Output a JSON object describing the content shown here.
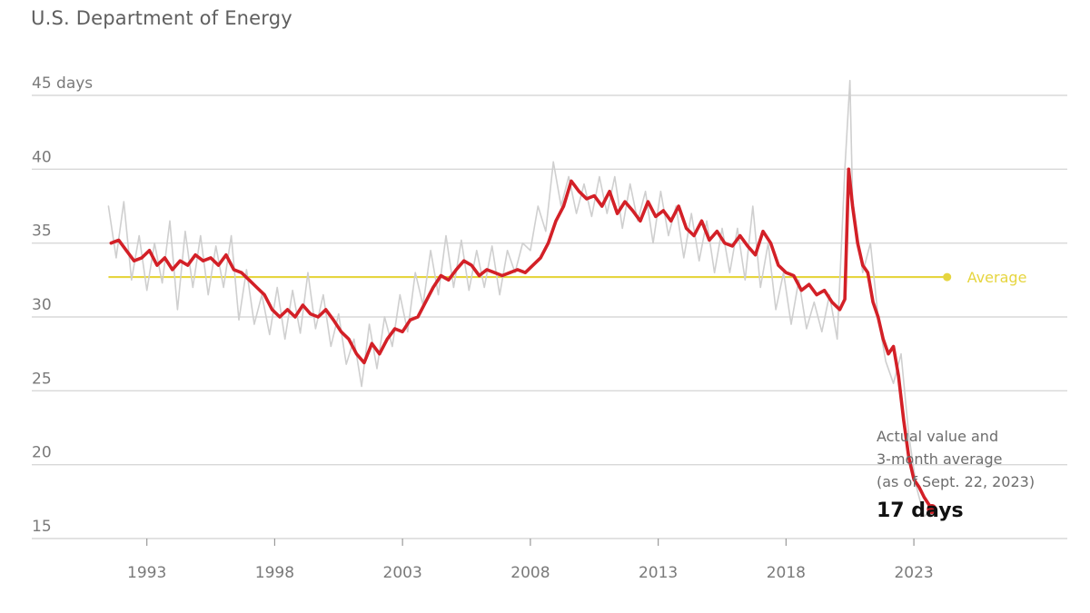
{
  "source": "U.S. Department of Energy",
  "chart_data": {
    "type": "line",
    "unit_label": "45 days",
    "y_ticks": [
      "40",
      "35",
      "30",
      "25",
      "20",
      "15"
    ],
    "y_tick_values": [
      40,
      35,
      30,
      25,
      20,
      15
    ],
    "ylim": [
      15,
      45
    ],
    "x_ticks": [
      "1993",
      "1998",
      "2003",
      "2008",
      "2013",
      "2018",
      "2023"
    ],
    "x_tick_values": [
      1993,
      1998,
      2003,
      2008,
      2013,
      2018,
      2023
    ],
    "xlim": [
      1988.5,
      2029
    ],
    "grid": true,
    "colors": {
      "average": "#e6d53f",
      "smooth": "#d32027",
      "raw": "#cfcfcf",
      "grid": "#d8d8d8"
    },
    "average": {
      "label": "Average",
      "value": 32.7
    },
    "annotation": {
      "lines": [
        "Actual value and",
        "3-month average",
        "(as of Sept. 22, 2023)"
      ],
      "value_label": "17 days",
      "value": 17
    },
    "series": [
      {
        "style": "raw",
        "x": [
          1991.5,
          1991.8,
          1992.1,
          1992.4,
          1992.7,
          1993.0,
          1993.3,
          1993.6,
          1993.9,
          1994.2,
          1994.5,
          1994.8,
          1995.1,
          1995.4,
          1995.7,
          1996.0,
          1996.3,
          1996.6,
          1996.9,
          1997.2,
          1997.5,
          1997.8,
          1998.1,
          1998.4,
          1998.7,
          1999.0,
          1999.3,
          1999.6,
          1999.9,
          2000.2,
          2000.5,
          2000.8,
          2001.1,
          2001.4,
          2001.7,
          2002.0,
          2002.3,
          2002.6,
          2002.9,
          2003.2,
          2003.5,
          2003.8,
          2004.1,
          2004.4,
          2004.7,
          2005.0,
          2005.3,
          2005.6,
          2005.9,
          2006.2,
          2006.5,
          2006.8,
          2007.1,
          2007.4,
          2007.7,
          2008.0,
          2008.3,
          2008.6,
          2008.9,
          2009.2,
          2009.5,
          2009.8,
          2010.1,
          2010.4,
          2010.7,
          2011.0,
          2011.3,
          2011.6,
          2011.9,
          2012.2,
          2012.5,
          2012.8,
          2013.1,
          2013.4,
          2013.7,
          2014.0,
          2014.3,
          2014.6,
          2014.9,
          2015.2,
          2015.5,
          2015.8,
          2016.1,
          2016.4,
          2016.7,
          2017.0,
          2017.3,
          2017.6,
          2017.9,
          2018.2,
          2018.5,
          2018.8,
          2019.1,
          2019.4,
          2019.7,
          2020.0,
          2020.3,
          2020.5,
          2020.6,
          2020.8,
          2021.0,
          2021.3,
          2021.6,
          2021.9,
          2022.2,
          2022.5,
          2022.8,
          2023.1,
          2023.4,
          2023.7
        ],
        "y": [
          37.5,
          34.0,
          37.8,
          32.5,
          35.5,
          31.8,
          35.0,
          32.3,
          36.5,
          30.5,
          35.8,
          32.0,
          35.5,
          31.5,
          34.8,
          32.0,
          35.5,
          29.8,
          33.2,
          29.5,
          31.5,
          28.8,
          32.0,
          28.5,
          31.8,
          28.9,
          33.0,
          29.2,
          31.5,
          28.0,
          30.2,
          26.8,
          28.5,
          25.3,
          29.5,
          26.5,
          30.0,
          28.0,
          31.5,
          29.0,
          33.0,
          30.8,
          34.5,
          31.5,
          35.5,
          32.0,
          35.2,
          31.8,
          34.5,
          32.0,
          34.8,
          31.5,
          34.5,
          33.0,
          35.0,
          34.5,
          37.5,
          35.8,
          40.5,
          37.5,
          39.5,
          37.0,
          39.0,
          36.8,
          39.5,
          37.0,
          39.5,
          36.0,
          39.0,
          36.5,
          38.5,
          35.0,
          38.5,
          35.5,
          37.5,
          34.0,
          37.0,
          33.8,
          36.5,
          33.0,
          36.0,
          33.0,
          36.0,
          32.5,
          37.5,
          32.0,
          35.0,
          30.5,
          33.0,
          29.5,
          32.5,
          29.2,
          31.0,
          29.0,
          31.5,
          28.5,
          40.0,
          46.0,
          38.0,
          35.5,
          33.0,
          35.0,
          30.0,
          27.0,
          25.5,
          27.5,
          22.0,
          18.5,
          16.5,
          17.0
        ]
      },
      {
        "style": "smooth",
        "x": [
          1991.6,
          1991.9,
          1992.2,
          1992.5,
          1992.8,
          1993.1,
          1993.4,
          1993.7,
          1994.0,
          1994.3,
          1994.6,
          1994.9,
          1995.2,
          1995.5,
          1995.8,
          1996.1,
          1996.4,
          1996.7,
          1997.0,
          1997.3,
          1997.6,
          1997.9,
          1998.2,
          1998.5,
          1998.8,
          1999.1,
          1999.4,
          1999.7,
          2000.0,
          2000.3,
          2000.6,
          2000.9,
          2001.2,
          2001.5,
          2001.8,
          2002.1,
          2002.4,
          2002.7,
          2003.0,
          2003.3,
          2003.6,
          2003.9,
          2004.2,
          2004.5,
          2004.8,
          2005.1,
          2005.4,
          2005.7,
          2006.0,
          2006.3,
          2006.6,
          2006.9,
          2007.2,
          2007.5,
          2007.8,
          2008.1,
          2008.4,
          2008.7,
          2009.0,
          2009.3,
          2009.6,
          2009.9,
          2010.2,
          2010.5,
          2010.8,
          2011.1,
          2011.4,
          2011.7,
          2012.0,
          2012.3,
          2012.6,
          2012.9,
          2013.2,
          2013.5,
          2013.8,
          2014.1,
          2014.4,
          2014.7,
          2015.0,
          2015.3,
          2015.6,
          2015.9,
          2016.2,
          2016.5,
          2016.8,
          2017.1,
          2017.4,
          2017.7,
          2018.0,
          2018.3,
          2018.6,
          2018.9,
          2019.2,
          2019.5,
          2019.8,
          2020.1,
          2020.3,
          2020.45,
          2020.6,
          2020.8,
          2021.0,
          2021.2,
          2021.4,
          2021.6,
          2021.8,
          2022.0,
          2022.2,
          2022.4,
          2022.6,
          2022.8,
          2023.0,
          2023.2,
          2023.4,
          2023.7
        ],
        "y": [
          35.0,
          35.2,
          34.5,
          33.8,
          34.0,
          34.5,
          33.5,
          34.0,
          33.2,
          33.8,
          33.5,
          34.2,
          33.8,
          34.0,
          33.5,
          34.2,
          33.2,
          33.0,
          32.5,
          32.0,
          31.5,
          30.5,
          30.0,
          30.5,
          30.0,
          30.8,
          30.2,
          30.0,
          30.5,
          29.8,
          29.0,
          28.5,
          27.5,
          26.9,
          28.2,
          27.5,
          28.5,
          29.2,
          29.0,
          29.8,
          30.0,
          31.0,
          32.0,
          32.8,
          32.5,
          33.2,
          33.8,
          33.5,
          32.8,
          33.2,
          33.0,
          32.8,
          33.0,
          33.2,
          33.0,
          33.5,
          34.0,
          35.0,
          36.5,
          37.5,
          39.2,
          38.5,
          38.0,
          38.2,
          37.5,
          38.5,
          37.0,
          37.8,
          37.2,
          36.5,
          37.8,
          36.8,
          37.2,
          36.5,
          37.5,
          36.0,
          35.5,
          36.5,
          35.2,
          35.8,
          35.0,
          34.8,
          35.5,
          34.8,
          34.2,
          35.8,
          35.0,
          33.5,
          33.0,
          32.8,
          31.8,
          32.2,
          31.5,
          31.8,
          31.0,
          30.5,
          31.2,
          40.0,
          37.5,
          35.0,
          33.5,
          33.0,
          31.0,
          30.0,
          28.5,
          27.5,
          28.0,
          26.0,
          23.0,
          20.5,
          19.0,
          18.5,
          17.8,
          17.0
        ]
      }
    ]
  }
}
